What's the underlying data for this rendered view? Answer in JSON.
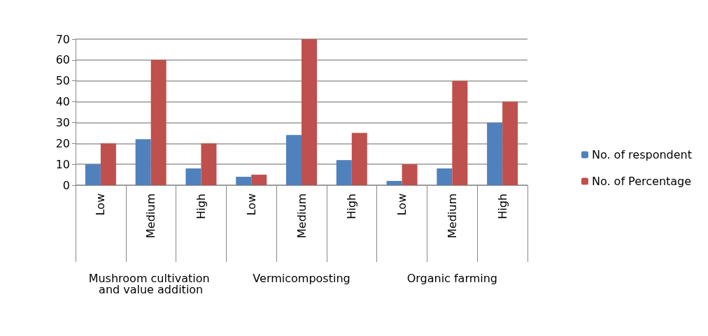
{
  "chart_data": {
    "type": "bar",
    "categories": [
      "Low",
      "Medium",
      "High",
      "Low",
      "Medium",
      "High",
      "Low",
      "Medium",
      "High"
    ],
    "series": [
      {
        "name": "No. of respondent",
        "color": "#4f81bd",
        "values": [
          10,
          22,
          8,
          4,
          24,
          12,
          2,
          8,
          30
        ]
      },
      {
        "name": "No. of Percentage",
        "color": "#c0504d",
        "values": [
          20,
          60,
          20,
          5,
          70,
          25,
          10,
          50,
          40
        ]
      }
    ],
    "annotations": [
      "Mushroom cultivation and value addition",
      "Vermicomposting",
      "Organic farming"
    ],
    "ylim": [
      0,
      70
    ],
    "yticks": [
      0,
      10,
      20,
      30,
      40,
      50,
      60,
      70
    ],
    "grid": "y",
    "legend": "right"
  }
}
